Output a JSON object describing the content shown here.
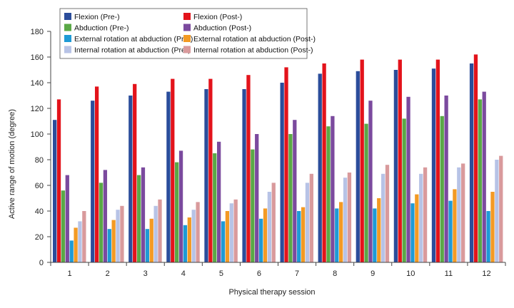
{
  "chart_data": {
    "type": "bar",
    "title": "",
    "xlabel": "Physical therapy session",
    "ylabel": "Active range of motion (degree)",
    "ylim": [
      0,
      180
    ],
    "yticks": [
      0,
      20,
      40,
      60,
      80,
      100,
      120,
      140,
      160,
      180
    ],
    "grid": false,
    "legend_position": "top-center",
    "categories": [
      "1",
      "2",
      "3",
      "4",
      "5",
      "6",
      "7",
      "8",
      "9",
      "10",
      "11",
      "12"
    ],
    "series": [
      {
        "name": "Flexion (Pre-)",
        "color": "#2b4d9b",
        "values": [
          111,
          126,
          130,
          133,
          135,
          135,
          140,
          147,
          149,
          150,
          151,
          155
        ]
      },
      {
        "name": "Flexion (Post-)",
        "color": "#e3131b",
        "values": [
          127,
          137,
          139,
          143,
          143,
          146,
          152,
          155,
          158,
          158,
          158,
          162
        ]
      },
      {
        "name": "Abduction (Pre-)",
        "color": "#5aa846",
        "values": [
          56,
          62,
          68,
          78,
          85,
          88,
          100,
          106,
          108,
          112,
          114,
          127
        ]
      },
      {
        "name": "Abduction (Post-)",
        "color": "#7b4a9e",
        "values": [
          68,
          72,
          74,
          87,
          94,
          100,
          111,
          114,
          126,
          129,
          130,
          133
        ]
      },
      {
        "name": "External rotation at abduction (Pre-)",
        "color": "#1e9ad6",
        "values": [
          17,
          26,
          26,
          29,
          32,
          34,
          40,
          42,
          42,
          46,
          48,
          40
        ]
      },
      {
        "name": "External rotation at abduction (Post-)",
        "color": "#f39a24",
        "values": [
          27,
          33,
          34,
          35,
          40,
          42,
          43,
          47,
          50,
          53,
          57,
          55
        ]
      },
      {
        "name": "Internal rotation at abduction (Pre-)",
        "color": "#b7c3e6",
        "values": [
          32,
          41,
          44,
          41,
          46,
          55,
          62,
          66,
          69,
          69,
          74,
          80
        ]
      },
      {
        "name": "Internal rotation at abduction (Post-)",
        "color": "#d99a9c",
        "values": [
          40,
          44,
          49,
          47,
          49,
          62,
          69,
          70,
          76,
          74,
          77,
          83
        ]
      }
    ]
  }
}
